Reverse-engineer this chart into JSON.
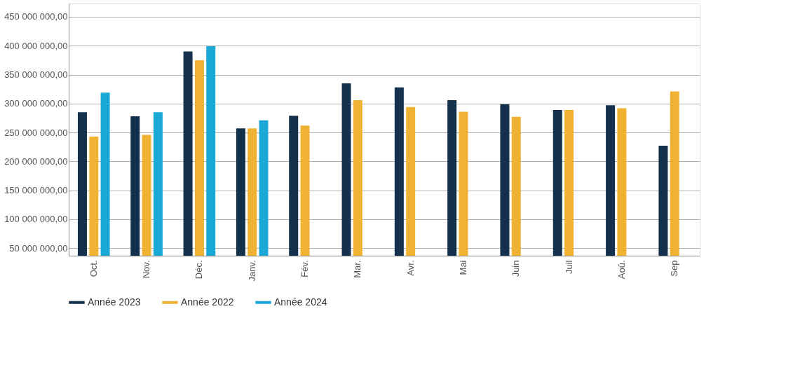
{
  "chart_data": {
    "type": "bar",
    "categories": [
      "Oct.",
      "Nov.",
      "Déc.",
      "Janv.",
      "Fév.",
      "Mar.",
      "Avr.",
      "Mai",
      "Juin",
      "Juil",
      "Aoû.",
      "Sep"
    ],
    "series": [
      {
        "name": "Année 2023",
        "color": "#13304d",
        "values": [
          285000000,
          278000000,
          390000000,
          257000000,
          279000000,
          335000000,
          328000000,
          306000000,
          299000000,
          289000000,
          297000000,
          227000000
        ]
      },
      {
        "name": "Année 2022",
        "color": "#f0b232",
        "values": [
          243000000,
          246000000,
          375000000,
          257000000,
          262000000,
          306000000,
          294000000,
          286000000,
          277000000,
          289000000,
          292000000,
          321000000
        ]
      },
      {
        "name": "Année 2024",
        "color": "#1aa8d6",
        "values": [
          319000000,
          285000000,
          399000000,
          271000000,
          null,
          null,
          null,
          null,
          null,
          null,
          null,
          null
        ]
      }
    ],
    "ylim": [
      37000000,
      473000000
    ],
    "yticks": [
      {
        "value": 50000000,
        "label": "50 000 000,00"
      },
      {
        "value": 100000000,
        "label": "100 000 000,00"
      },
      {
        "value": 150000000,
        "label": "150 000 000,00"
      },
      {
        "value": 200000000,
        "label": "200 000 000,00"
      },
      {
        "value": 250000000,
        "label": "250 000 000,00"
      },
      {
        "value": 300000000,
        "label": "300 000 000,00"
      },
      {
        "value": 350000000,
        "label": "350 000 000,00"
      },
      {
        "value": 400000000,
        "label": "400 000 000,00"
      },
      {
        "value": 450000000,
        "label": "450 000 000,00"
      }
    ],
    "grid": "y",
    "legend": "bottom"
  }
}
